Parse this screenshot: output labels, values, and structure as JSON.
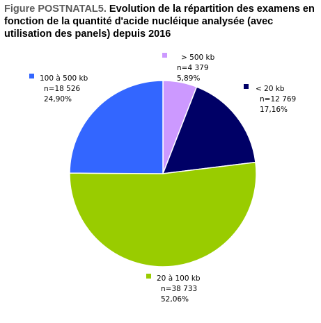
{
  "title_prefix": "Figure POSTNATAL5.",
  "title_text": " Evolution de la répartition des examens en fonction de la quantité d'acide nucléique analysée (avec utilisation des panels) depuis 2016",
  "chart_data": {
    "type": "pie",
    "title": "Figure POSTNATAL5. Evolution de la répartition des examens en fonction de la quantité d'acide nucléique analysée (avec utilisation des panels) depuis 2016",
    "legend": "labels beside each slice",
    "slices": [
      {
        "label": "> 500 kb",
        "count_text": "n=4 379",
        "value": 4379,
        "percent_text": "5,89%",
        "color": "#cc99ff"
      },
      {
        "label": "< 20 kb",
        "count_text": "n=12 769",
        "value": 12769,
        "percent_text": "17,16%",
        "color": "#000066"
      },
      {
        "label": "20 à 100 kb",
        "count_text": "n=38 733",
        "value": 38733,
        "percent_text": "52,06%",
        "color": "#99cc00"
      },
      {
        "label": "100 à 500 kb",
        "count_text": "n=18 526",
        "value": 18526,
        "percent_text": "24,90%",
        "color": "#3366ff"
      }
    ]
  }
}
